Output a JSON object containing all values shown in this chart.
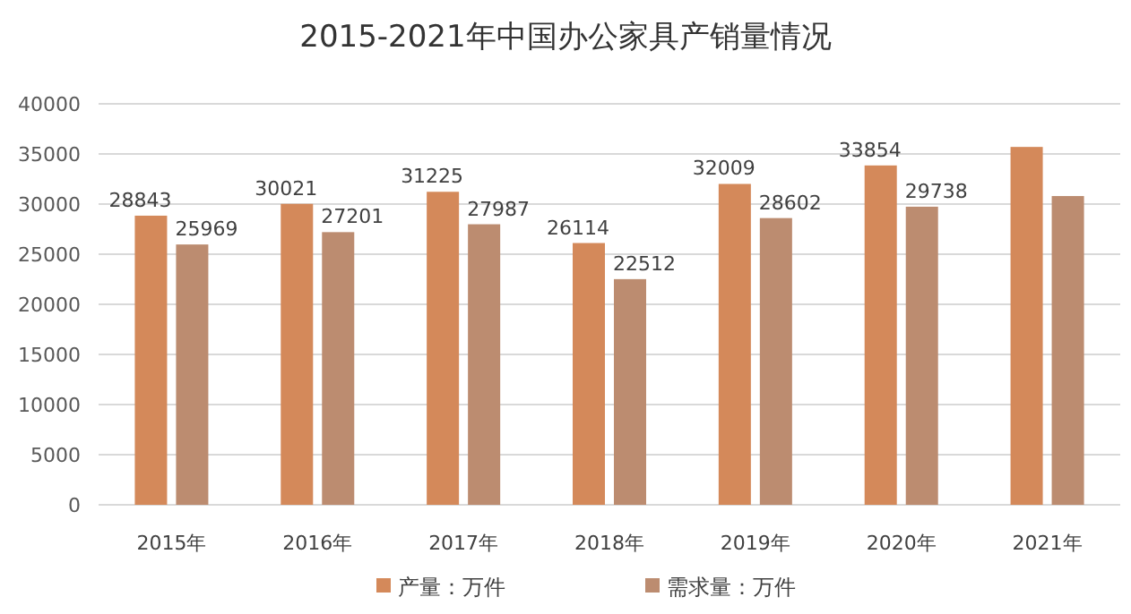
{
  "chart_data": {
    "type": "bar",
    "title": "2015-2021年中国办公家具产销量情况",
    "categories": [
      "2015年",
      "2016年",
      "2017年",
      "2018年",
      "2019年",
      "2020年",
      "2021年"
    ],
    "series": [
      {
        "name": "产量：万件",
        "color": "#d4895a",
        "values": [
          28843,
          30021,
          31225,
          26114,
          32009,
          33854,
          35700
        ],
        "value_labels": [
          "28843",
          "30021",
          "31225",
          "26114",
          "32009",
          "33854",
          null
        ]
      },
      {
        "name": "需求量：万件",
        "color": "#bc8c70",
        "values": [
          25969,
          27201,
          27987,
          22512,
          28602,
          29738,
          30800
        ],
        "value_labels": [
          "25969",
          "27201",
          "27987",
          "22512",
          "28602",
          "29738",
          null
        ]
      }
    ],
    "ylim": [
      0,
      40000
    ],
    "yticks": [
      0,
      5000,
      10000,
      15000,
      20000,
      25000,
      30000,
      35000,
      40000
    ],
    "grid": "y",
    "legend": "bottom"
  }
}
